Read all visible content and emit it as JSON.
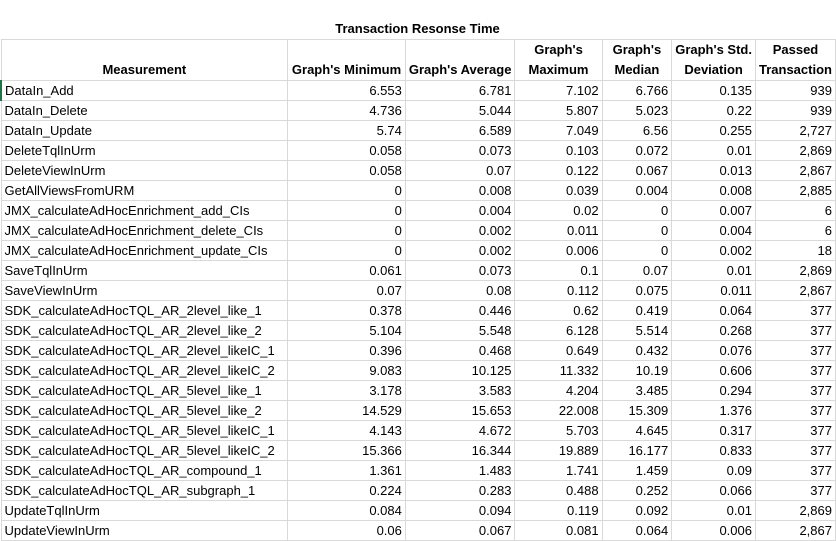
{
  "title": "Transaction Resonse Time",
  "headers": {
    "measurement": "Measurement",
    "min": "Graph's Minimum",
    "avg": "Graph's Average",
    "max_l1": "Graph's",
    "max_l2": "Maximum",
    "median_l1": "Graph's",
    "median_l2": "Median",
    "std_l1": "Graph's Std.",
    "std_l2": "Deviation",
    "passed_l1": "Passed",
    "passed_l2": "Transaction"
  },
  "rows": [
    {
      "name": "DataIn_Add",
      "min": "6.553",
      "avg": "6.781",
      "max": "7.102",
      "median": "6.766",
      "std": "0.135",
      "passed": "939"
    },
    {
      "name": "DataIn_Delete",
      "min": "4.736",
      "avg": "5.044",
      "max": "5.807",
      "median": "5.023",
      "std": "0.22",
      "passed": "939"
    },
    {
      "name": "DataIn_Update",
      "min": "5.74",
      "avg": "6.589",
      "max": "7.049",
      "median": "6.56",
      "std": "0.255",
      "passed": "2,727"
    },
    {
      "name": "DeleteTqlInUrm",
      "min": "0.058",
      "avg": "0.073",
      "max": "0.103",
      "median": "0.072",
      "std": "0.01",
      "passed": "2,869"
    },
    {
      "name": "DeleteViewInUrm",
      "min": "0.058",
      "avg": "0.07",
      "max": "0.122",
      "median": "0.067",
      "std": "0.013",
      "passed": "2,867"
    },
    {
      "name": "GetAllViewsFromURM",
      "min": "0",
      "avg": "0.008",
      "max": "0.039",
      "median": "0.004",
      "std": "0.008",
      "passed": "2,885"
    },
    {
      "name": "JMX_calculateAdHocEnrichment_add_CIs",
      "min": "0",
      "avg": "0.004",
      "max": "0.02",
      "median": "0",
      "std": "0.007",
      "passed": "6"
    },
    {
      "name": "JMX_calculateAdHocEnrichment_delete_CIs",
      "min": "0",
      "avg": "0.002",
      "max": "0.011",
      "median": "0",
      "std": "0.004",
      "passed": "6"
    },
    {
      "name": "JMX_calculateAdHocEnrichment_update_CIs",
      "min": "0",
      "avg": "0.002",
      "max": "0.006",
      "median": "0",
      "std": "0.002",
      "passed": "18"
    },
    {
      "name": "SaveTqlInUrm",
      "min": "0.061",
      "avg": "0.073",
      "max": "0.1",
      "median": "0.07",
      "std": "0.01",
      "passed": "2,869"
    },
    {
      "name": "SaveViewInUrm",
      "min": "0.07",
      "avg": "0.08",
      "max": "0.112",
      "median": "0.075",
      "std": "0.011",
      "passed": "2,867"
    },
    {
      "name": "SDK_calculateAdHocTQL_AR_2level_like_1",
      "min": "0.378",
      "avg": "0.446",
      "max": "0.62",
      "median": "0.419",
      "std": "0.064",
      "passed": "377"
    },
    {
      "name": "SDK_calculateAdHocTQL_AR_2level_like_2",
      "min": "5.104",
      "avg": "5.548",
      "max": "6.128",
      "median": "5.514",
      "std": "0.268",
      "passed": "377"
    },
    {
      "name": "SDK_calculateAdHocTQL_AR_2level_likeIC_1",
      "min": "0.396",
      "avg": "0.468",
      "max": "0.649",
      "median": "0.432",
      "std": "0.076",
      "passed": "377"
    },
    {
      "name": "SDK_calculateAdHocTQL_AR_2level_likeIC_2",
      "min": "9.083",
      "avg": "10.125",
      "max": "11.332",
      "median": "10.19",
      "std": "0.606",
      "passed": "377"
    },
    {
      "name": "SDK_calculateAdHocTQL_AR_5level_like_1",
      "min": "3.178",
      "avg": "3.583",
      "max": "4.204",
      "median": "3.485",
      "std": "0.294",
      "passed": "377"
    },
    {
      "name": "SDK_calculateAdHocTQL_AR_5level_like_2",
      "min": "14.529",
      "avg": "15.653",
      "max": "22.008",
      "median": "15.309",
      "std": "1.376",
      "passed": "377"
    },
    {
      "name": "SDK_calculateAdHocTQL_AR_5level_likeIC_1",
      "min": "4.143",
      "avg": "4.672",
      "max": "5.703",
      "median": "4.645",
      "std": "0.317",
      "passed": "377"
    },
    {
      "name": "SDK_calculateAdHocTQL_AR_5level_likeIC_2",
      "min": "15.366",
      "avg": "16.344",
      "max": "19.889",
      "median": "16.177",
      "std": "0.833",
      "passed": "377"
    },
    {
      "name": "SDK_calculateAdHocTQL_AR_compound_1",
      "min": "1.361",
      "avg": "1.483",
      "max": "1.741",
      "median": "1.459",
      "std": "0.09",
      "passed": "377"
    },
    {
      "name": "SDK_calculateAdHocTQL_AR_subgraph_1",
      "min": "0.224",
      "avg": "0.283",
      "max": "0.488",
      "median": "0.252",
      "std": "0.066",
      "passed": "377"
    },
    {
      "name": "UpdateTqlInUrm",
      "min": "0.084",
      "avg": "0.094",
      "max": "0.119",
      "median": "0.092",
      "std": "0.01",
      "passed": "2,869"
    },
    {
      "name": "UpdateViewInUrm",
      "min": "0.06",
      "avg": "0.067",
      "max": "0.081",
      "median": "0.064",
      "std": "0.006",
      "passed": "2,867"
    }
  ],
  "colors": {
    "gridline": "#d9d9d9",
    "selection": "#217346"
  }
}
